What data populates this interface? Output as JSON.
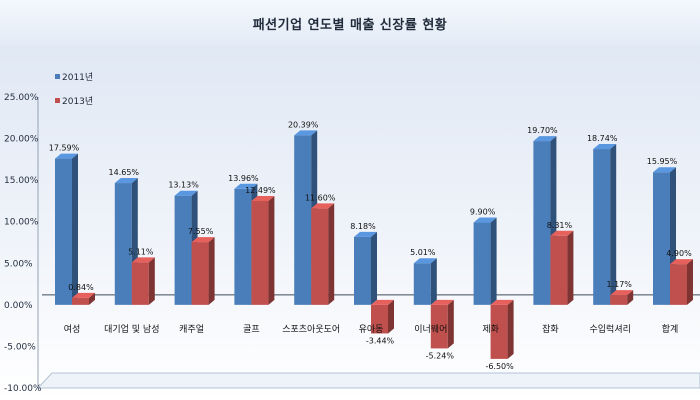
{
  "chart_data": {
    "type": "bar",
    "title": "패션기업 연도별 매출 신장률 현황",
    "categories": [
      "여성",
      "대기업 및 남성",
      "캐주얼",
      "골프",
      "스포츠아웃도어",
      "유아동",
      "이너웨어",
      "제화",
      "잡화",
      "수입럭셔리",
      "합계"
    ],
    "series": [
      {
        "name": "2011년",
        "values": [
          17.59,
          14.65,
          13.13,
          13.96,
          20.39,
          8.18,
          5.01,
          9.9,
          19.7,
          18.74,
          15.95
        ],
        "labels": [
          "17.59%",
          "14.65%",
          "13.13%",
          "13.96%",
          "20.39%",
          "8.18%",
          "5.01%",
          "9.90%",
          "19.70%",
          "18.74%",
          "15.95%"
        ]
      },
      {
        "name": "2013년",
        "values": [
          0.84,
          5.11,
          7.55,
          12.49,
          11.6,
          -3.44,
          -5.24,
          -6.5,
          8.31,
          1.17,
          4.9
        ],
        "labels": [
          "0.84%",
          "5.11%",
          "7.55%",
          "12.49%",
          "11.60%",
          "-3.44%",
          "-5.24%",
          "-6.50%",
          "8.31%",
          "1.17%",
          "4.90%"
        ]
      }
    ],
    "ylim": [
      -10,
      25
    ],
    "yticks": [
      -10,
      -5,
      0,
      5,
      10,
      15,
      20,
      25
    ],
    "ytick_labels": [
      "-10.00%",
      "-5.00%",
      "0.00%",
      "5.00%",
      "10.00%",
      "15.00%",
      "20.00%",
      "25.00%"
    ],
    "colors": {
      "2011년": "#4a7ebb",
      "2013년": "#c0504d"
    },
    "legend": "top-left",
    "grid": false
  }
}
